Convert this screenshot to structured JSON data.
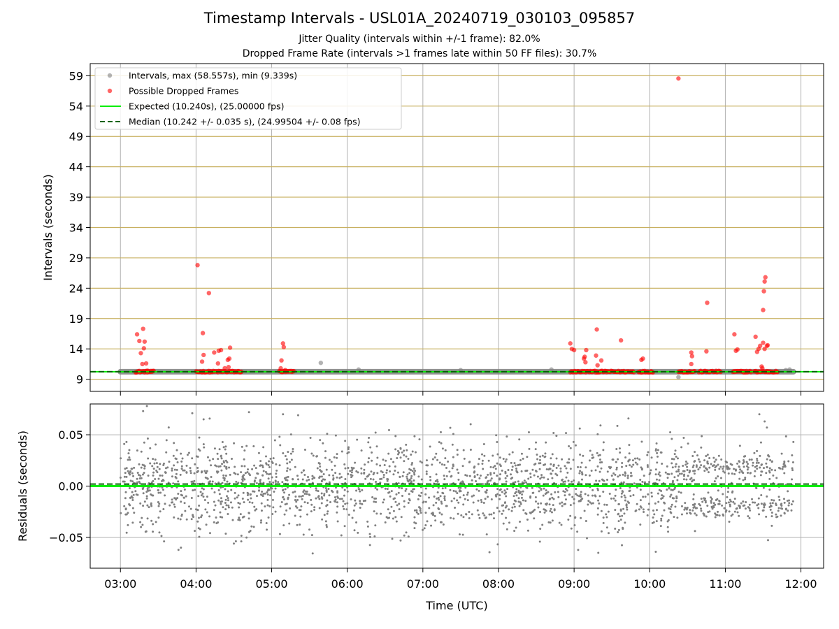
{
  "title": "Timestamp Intervals - USL01A_20240719_030103_095857",
  "subtitle1": "Jitter Quality (intervals within +/-1 frame): 82.0%",
  "subtitle2": "Dropped Frame Rate (intervals >1 frames late within 50 FF files): 30.7%",
  "colors": {
    "intervals": "#808080",
    "dropped": "#ff0000",
    "expected": "#00ee00",
    "median": "#006400",
    "gridline_gold": "#c8b060",
    "grid": "#b0b0b0"
  },
  "chart_data": [
    {
      "type": "scatter",
      "ylabel": "Intervals (seconds)",
      "xlabel": "",
      "x_unit": "hours UTC",
      "xlim": [
        2.6,
        12.3
      ],
      "ylim": [
        7.0,
        61.0
      ],
      "yticks": [
        "9",
        "14",
        "19",
        "24",
        "29",
        "34",
        "39",
        "44",
        "49",
        "54",
        "59"
      ],
      "grid": true,
      "legend_position": "top-left",
      "legend": [
        "Intervals, max (58.557s), min (9.339s)",
        "Possible Dropped Frames",
        "Expected (10.240s), (25.00000 fps)",
        "Median (10.242 +/- 0.035 s), (24.99504 +/- 0.08 fps)"
      ],
      "expected_value": 10.24,
      "median_value": 10.242,
      "baseline_x_range": [
        3.0,
        11.9
      ],
      "intervals_points": [
        [
          5.65,
          11.7
        ],
        [
          6.15,
          10.6
        ],
        [
          7.5,
          10.5
        ],
        [
          8.7,
          10.6
        ],
        [
          10.38,
          9.34
        ],
        [
          10.75,
          10.1
        ],
        [
          11.55,
          10.3
        ],
        [
          11.8,
          10.5
        ],
        [
          11.85,
          10.6
        ]
      ],
      "dropped_frames": [
        [
          3.22,
          16.4
        ],
        [
          3.25,
          15.3
        ],
        [
          3.27,
          13.3
        ],
        [
          3.29,
          11.5
        ],
        [
          3.3,
          17.3
        ],
        [
          3.31,
          14.1
        ],
        [
          3.32,
          15.2
        ],
        [
          3.34,
          11.6
        ],
        [
          3.36,
          10.4
        ],
        [
          4.02,
          27.8
        ],
        [
          4.09,
          16.6
        ],
        [
          4.1,
          13.0
        ],
        [
          4.08,
          11.9
        ],
        [
          4.17,
          23.2
        ],
        [
          4.24,
          13.4
        ],
        [
          4.3,
          13.7
        ],
        [
          4.33,
          13.8
        ],
        [
          4.29,
          11.6
        ],
        [
          4.38,
          10.8
        ],
        [
          4.42,
          12.2
        ],
        [
          4.44,
          12.4
        ],
        [
          4.45,
          14.2
        ],
        [
          4.43,
          11.0
        ],
        [
          5.13,
          12.1
        ],
        [
          5.15,
          14.9
        ],
        [
          5.16,
          14.3
        ],
        [
          5.12,
          10.8
        ],
        [
          5.18,
          10.5
        ],
        [
          8.95,
          14.9
        ],
        [
          8.97,
          14.0
        ],
        [
          9.0,
          13.8
        ],
        [
          9.13,
          12.4
        ],
        [
          9.15,
          11.8
        ],
        [
          9.16,
          13.8
        ],
        [
          9.14,
          12.7
        ],
        [
          9.3,
          17.2
        ],
        [
          9.31,
          11.3
        ],
        [
          9.29,
          12.9
        ],
        [
          9.36,
          12.1
        ],
        [
          9.62,
          15.4
        ],
        [
          9.89,
          12.2
        ],
        [
          9.91,
          12.4
        ],
        [
          10.38,
          58.55
        ],
        [
          10.55,
          13.4
        ],
        [
          10.56,
          12.8
        ],
        [
          10.55,
          11.5
        ],
        [
          10.76,
          21.6
        ],
        [
          10.75,
          13.6
        ],
        [
          11.12,
          16.4
        ],
        [
          11.14,
          13.7
        ],
        [
          11.16,
          13.9
        ],
        [
          11.4,
          16.0
        ],
        [
          11.42,
          13.5
        ],
        [
          11.44,
          14.0
        ],
        [
          11.46,
          14.5
        ],
        [
          11.5,
          20.4
        ],
        [
          11.51,
          23.5
        ],
        [
          11.52,
          25.1
        ],
        [
          11.53,
          25.8
        ],
        [
          11.5,
          15.0
        ],
        [
          11.52,
          14.0
        ],
        [
          11.55,
          14.5
        ],
        [
          11.56,
          14.6
        ],
        [
          11.48,
          11.1
        ],
        [
          11.49,
          10.8
        ]
      ],
      "dropped_clusters": [
        [
          3.2,
          3.45
        ],
        [
          4.0,
          4.6
        ],
        [
          5.1,
          5.3
        ],
        [
          8.95,
          9.55
        ],
        [
          9.55,
          9.8
        ],
        [
          9.85,
          10.05
        ],
        [
          10.38,
          10.6
        ],
        [
          10.65,
          10.95
        ],
        [
          11.1,
          11.35
        ],
        [
          11.38,
          11.7
        ]
      ]
    },
    {
      "type": "scatter",
      "ylabel": "Residuals (seconds)",
      "xlabel": "Time (UTC)",
      "x_unit": "hours UTC",
      "xlim": [
        2.6,
        12.3
      ],
      "ylim": [
        -0.08,
        0.08
      ],
      "yticks": [
        "−0.05",
        "0.00",
        "0.05"
      ],
      "ytick_values": [
        -0.05,
        0.0,
        0.05
      ],
      "xticks": [
        "03:00",
        "04:00",
        "05:00",
        "06:00",
        "07:00",
        "08:00",
        "09:00",
        "10:00",
        "11:00",
        "12:00"
      ],
      "xtick_values": [
        3,
        4,
        5,
        6,
        7,
        8,
        9,
        10,
        11,
        12
      ],
      "grid": true,
      "expected_residual": 0.0,
      "median_residual": 0.002,
      "residual_points_sample": [
        [
          3.05,
          0.041
        ],
        [
          3.08,
          0.043
        ],
        [
          3.3,
          0.073
        ],
        [
          3.35,
          0.078
        ],
        [
          3.95,
          0.071
        ],
        [
          4.1,
          0.065
        ],
        [
          4.7,
          0.072
        ],
        [
          5.15,
          0.07
        ],
        [
          5.35,
          0.069
        ],
        [
          3.8,
          -0.06
        ],
        [
          4.5,
          -0.056
        ],
        [
          9.32,
          -0.065
        ],
        [
          10.08,
          -0.064
        ],
        [
          10.45,
          0.047
        ],
        [
          11.45,
          0.07
        ],
        [
          11.52,
          0.063
        ],
        [
          11.55,
          0.057
        ],
        [
          11.9,
          0.043
        ]
      ],
      "residual_spread_note": "dense noise roughly between -0.06 and +0.06 s across 03:00-11:55; after ~10:30 values cluster near +0.02 and -0.02"
    }
  ]
}
